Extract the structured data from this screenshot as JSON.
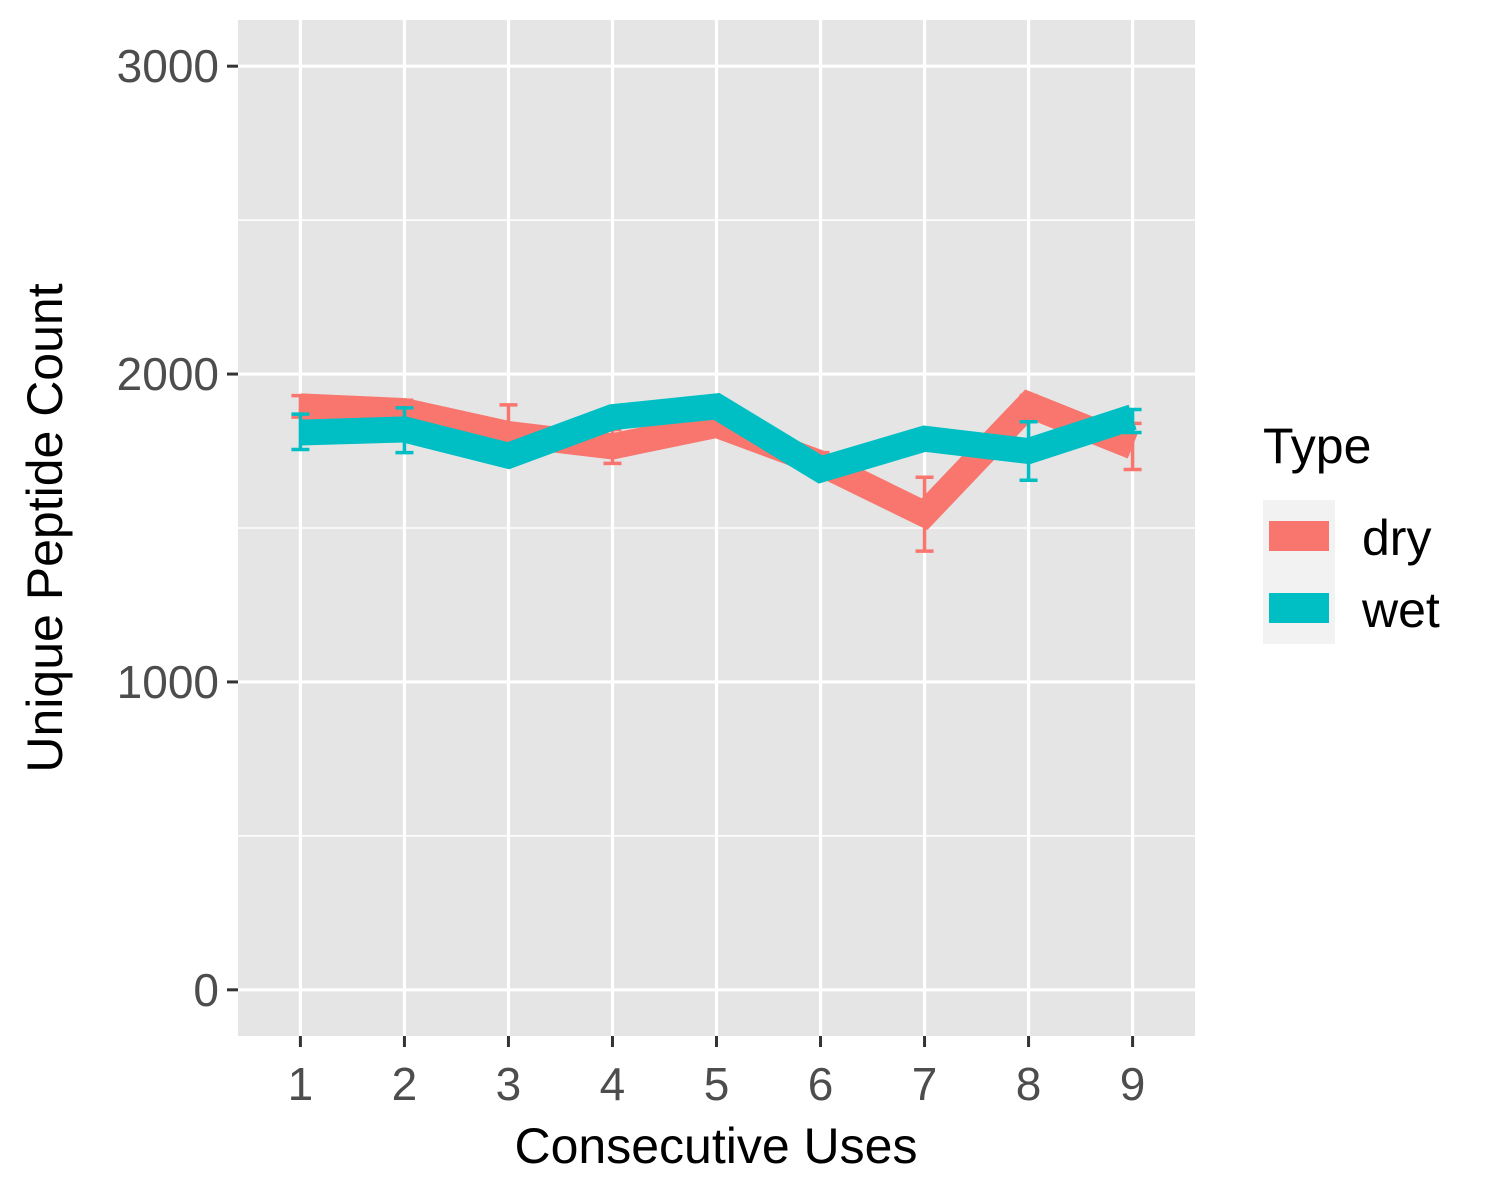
{
  "chart_data": {
    "type": "line",
    "title": "",
    "xlabel": "Consecutive Uses",
    "ylabel": "Unique Peptide Count",
    "x": [
      1,
      2,
      3,
      4,
      5,
      6,
      7,
      8,
      9
    ],
    "x_tick_labels": [
      "1",
      "2",
      "3",
      "4",
      "5",
      "6",
      "7",
      "8",
      "9"
    ],
    "ylim": [
      -150,
      3150
    ],
    "xlim": [
      0.4,
      9.6
    ],
    "y_ticks": [
      0,
      1000,
      2000,
      3000
    ],
    "y_tick_labels": [
      "0",
      "1000",
      "2000",
      "3000"
    ],
    "grid": true,
    "legend": {
      "title": "Type",
      "placement": "right"
    },
    "series": [
      {
        "name": "dry",
        "color": "#F8766D",
        "values": [
          1895,
          1880,
          1805,
          1765,
          1835,
          1710,
          1545,
          1900,
          1765
        ],
        "err_low": [
          1860,
          1845,
          1720,
          1710,
          1810,
          1680,
          1425,
          1880,
          1690
        ],
        "err_high": [
          1930,
          1915,
          1900,
          1820,
          1870,
          1745,
          1665,
          1930,
          1840
        ]
      },
      {
        "name": "wet",
        "color": "#00BFC4",
        "values": [
          1810,
          1820,
          1735,
          1860,
          1895,
          1690,
          1790,
          1750,
          1860
        ],
        "err_low": [
          1755,
          1745,
          1715,
          1835,
          1880,
          1680,
          1775,
          1655,
          1810
        ],
        "err_high": [
          1870,
          1890,
          1755,
          1885,
          1915,
          1700,
          1805,
          1845,
          1885
        ]
      }
    ]
  }
}
